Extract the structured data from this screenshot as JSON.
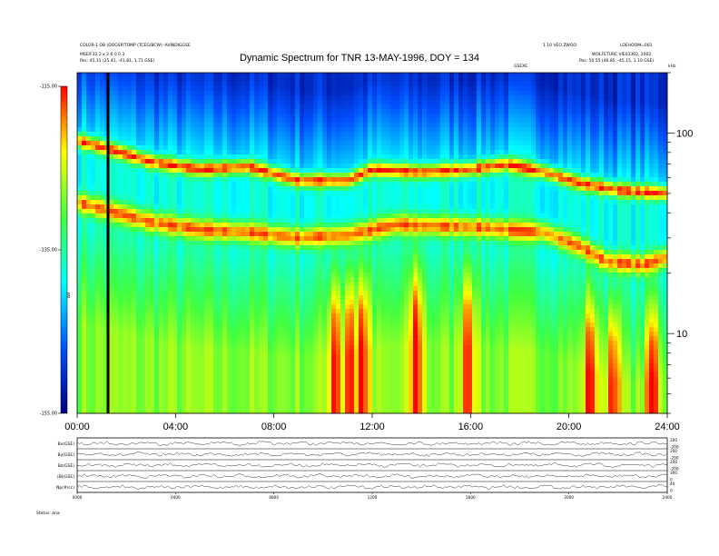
{
  "header": {
    "title": "Dynamic Spectrum for TNR 13-MAY-1996, DOY = 134",
    "left_line1": "COLOR-1 OB (DOGSP/TOMP (TCEG/BCW) -AVINDIGGSE",
    "left_line2": "MSE/F32.2 x 2 6 0 0 3",
    "left_line3": "Pos:   45.31 (25.41, -41.81, 1.71 GSE)",
    "right_line1": "1 10 VEO ZWOO",
    "right_line2": "LOEHOOM=001",
    "right_line3": "WOLFETURE VIE03302, 2002",
    "right_line4": "Pos:   50.55 (46.85, -45.15, 1.10 GSE)",
    "center_small": "GSEXE",
    "freq_unit": "kHz",
    "colorbar_unit": "ΔB",
    "footer_label": "Status:  ana"
  },
  "chart_data": {
    "type": "heatmap",
    "title": "Dynamic Spectrum for TNR 13-MAY-1996, DOY = 134",
    "x_ticks": [
      "00:00",
      "04:00",
      "08:00",
      "12:00",
      "16:00",
      "20:00",
      "24:00"
    ],
    "x_range_hours": [
      0,
      24
    ],
    "y_scale": "log",
    "y_range_khz": [
      4,
      200
    ],
    "y_ticks": [
      10,
      100
    ],
    "colorbar": {
      "range": [
        -155,
        -115
      ],
      "ticks": [
        -115.0,
        -135.0,
        -155.0
      ],
      "colors": [
        "#0000aa",
        "#0050ff",
        "#00e0ff",
        "#00ffe0",
        "#40ff40",
        "#ffff00",
        "#ffa000",
        "#ff0000"
      ]
    },
    "features": {
      "upper_band_khz": [
        [
          0,
          92
        ],
        [
          1.5,
          82
        ],
        [
          3,
          72
        ],
        [
          5,
          66
        ],
        [
          7,
          68
        ],
        [
          9,
          58
        ],
        [
          11,
          58
        ],
        [
          12,
          66
        ],
        [
          14,
          64
        ],
        [
          16,
          66
        ],
        [
          17.5,
          70
        ],
        [
          19,
          64
        ],
        [
          20.5,
          56
        ],
        [
          22,
          52
        ],
        [
          24,
          50
        ]
      ],
      "lower_band_khz": [
        [
          0,
          45
        ],
        [
          1,
          42
        ],
        [
          3,
          36
        ],
        [
          5,
          33
        ],
        [
          7,
          32
        ],
        [
          9,
          30
        ],
        [
          11,
          31
        ],
        [
          13,
          35
        ],
        [
          16,
          34
        ],
        [
          19,
          32
        ],
        [
          20.5,
          27
        ],
        [
          21.5,
          23
        ],
        [
          23,
          22
        ],
        [
          24,
          24
        ]
      ],
      "bursts_hours": [
        10.5,
        11.1,
        11.6,
        13.8,
        15.9,
        20.9,
        21.8,
        23.4
      ],
      "data_gap_hour": 1.2
    },
    "panels": {
      "labels": [
        "Bx(GSE)",
        "By(GSE)",
        "Bz(GSE)",
        "|B|(GSE)",
        "Np(#/cc)"
      ],
      "ticks_right": [
        [
          "200",
          "-200"
        ],
        [
          "200",
          "-200"
        ],
        [
          "200",
          "-200"
        ],
        [
          "300",
          "0"
        ],
        [
          "40",
          "0"
        ]
      ],
      "x_ticks": [
        "0000",
        "0400",
        "0800",
        "1200",
        "1600",
        "2000",
        "2400"
      ]
    }
  }
}
